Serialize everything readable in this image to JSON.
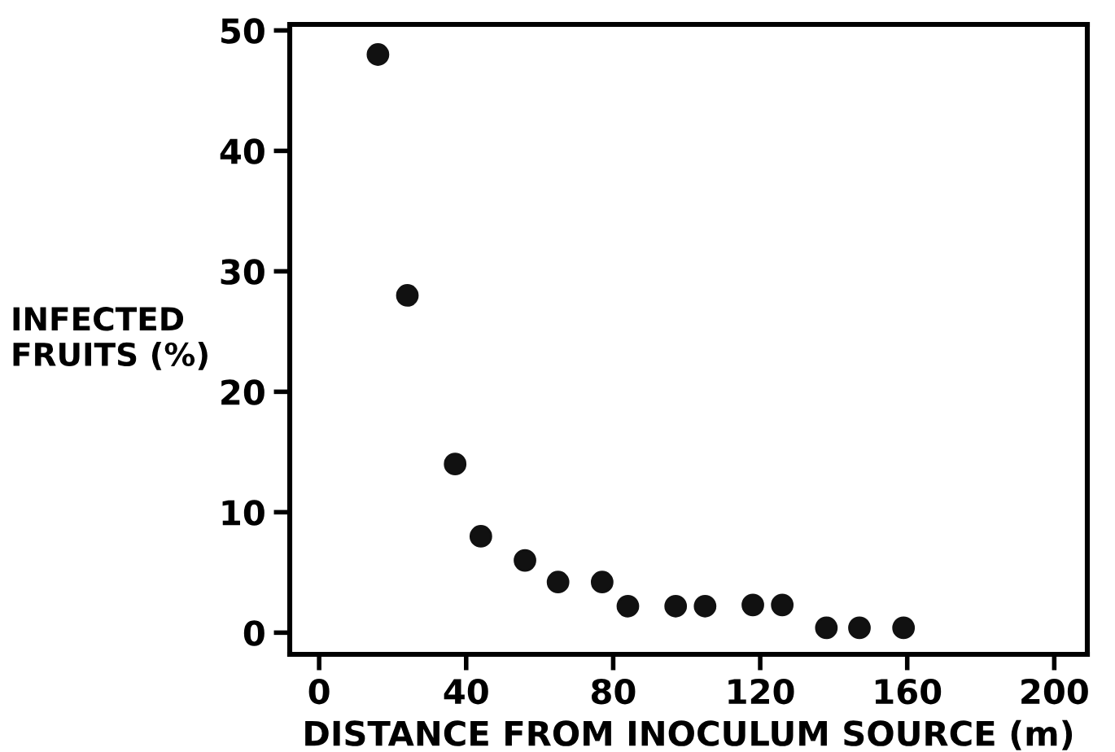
{
  "chart_data": {
    "type": "scatter",
    "xlabel": "DISTANCE FROM INOCULUM SOURCE (m)",
    "ylabel": "INFECTED\nFRUITS (%)",
    "x": [
      16,
      24,
      37,
      44,
      56,
      65,
      77,
      84,
      97,
      105,
      118,
      126,
      138,
      147,
      159
    ],
    "values": [
      48,
      28,
      14,
      8,
      6,
      4.2,
      4.2,
      2.2,
      2.2,
      2.2,
      2.3,
      2.3,
      0.4,
      0.4,
      0.4
    ],
    "color": "#111111",
    "marker": "circle",
    "grid": false,
    "xlim": [
      -8,
      209
    ],
    "ylim": [
      -1.8,
      50.5
    ],
    "xticks": [
      0,
      40,
      80,
      120,
      160,
      200
    ],
    "yticks": [
      0,
      10,
      20,
      30,
      40,
      50
    ]
  }
}
